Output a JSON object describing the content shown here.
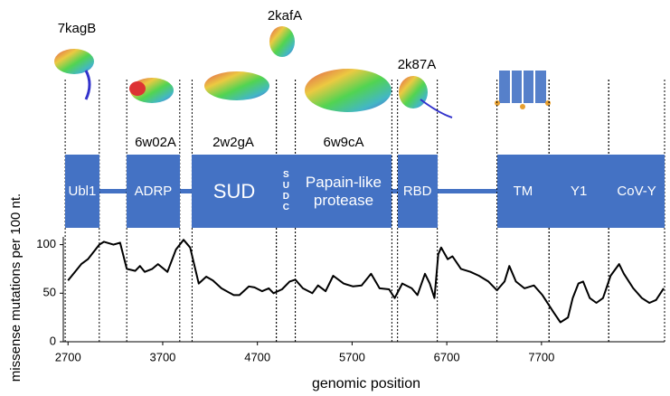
{
  "chart_data": {
    "type": "line",
    "x_label": "genomic position",
    "y_label": "missense mutations per 100 nt.",
    "xlim": [
      2650,
      9000
    ],
    "ylim": [
      0,
      108
    ],
    "xticks": [
      2700,
      3700,
      4700,
      5700,
      6700,
      7700
    ],
    "yticks": [
      0,
      50,
      100
    ],
    "color": "#000000",
    "domain_color": "#4472c4",
    "x": [
      2700,
      2840,
      2910,
      3030,
      3080,
      3180,
      3250,
      3320,
      3410,
      3460,
      3510,
      3590,
      3650,
      3750,
      3840,
      3920,
      3990,
      4080,
      4160,
      4230,
      4320,
      4450,
      4510,
      4610,
      4670,
      4750,
      4820,
      4870,
      4960,
      5040,
      5100,
      5180,
      5280,
      5340,
      5420,
      5500,
      5610,
      5710,
      5800,
      5900,
      5990,
      6090,
      6150,
      6230,
      6330,
      6390,
      6470,
      6520,
      6570,
      6610,
      6640,
      6710,
      6760,
      6850,
      6950,
      7040,
      7140,
      7230,
      7310,
      7360,
      7430,
      7520,
      7620,
      7710,
      7830,
      7900,
      7980,
      8030,
      8090,
      8140,
      8210,
      8280,
      8350,
      8430,
      8520,
      8570,
      8670,
      8760,
      8840,
      8910,
      8990
    ],
    "values": [
      63,
      80,
      85,
      100,
      103,
      100,
      102,
      75,
      73,
      78,
      72,
      75,
      80,
      72,
      95,
      105,
      97,
      60,
      67,
      63,
      55,
      48,
      48,
      57,
      56,
      52,
      55,
      50,
      54,
      62,
      64,
      55,
      50,
      58,
      52,
      68,
      60,
      57,
      58,
      70,
      55,
      54,
      45,
      60,
      55,
      48,
      70,
      60,
      45,
      90,
      97,
      85,
      88,
      75,
      72,
      68,
      62,
      53,
      62,
      78,
      62,
      55,
      58,
      48,
      30,
      20,
      25,
      45,
      60,
      62,
      45,
      40,
      45,
      68,
      80,
      70,
      55,
      45,
      40,
      43,
      55
    ],
    "domains": [
      {
        "label": "Ubl1",
        "start": 2670,
        "end": 3030
      },
      {
        "label": "ADRP",
        "start": 3320,
        "end": 3880
      },
      {
        "label": "SUD",
        "start": 4010,
        "end": 4900
      },
      {
        "label": "SUDC",
        "start": 4900,
        "end": 5100
      },
      {
        "label": "Papain-like protease",
        "start": 5100,
        "end": 6120
      },
      {
        "label": "RBD",
        "start": 6180,
        "end": 6600
      },
      {
        "label": "TM",
        "start": 7230,
        "end": 7780
      },
      {
        "label": "Y1",
        "start": 7780,
        "end": 8410
      },
      {
        "label": "CoV-Y",
        "start": 8410,
        "end": 9000
      }
    ],
    "annotations": [
      "7kagB",
      "2kafA",
      "6w02A",
      "2w2gA",
      "6w9cA",
      "2k87A"
    ]
  }
}
